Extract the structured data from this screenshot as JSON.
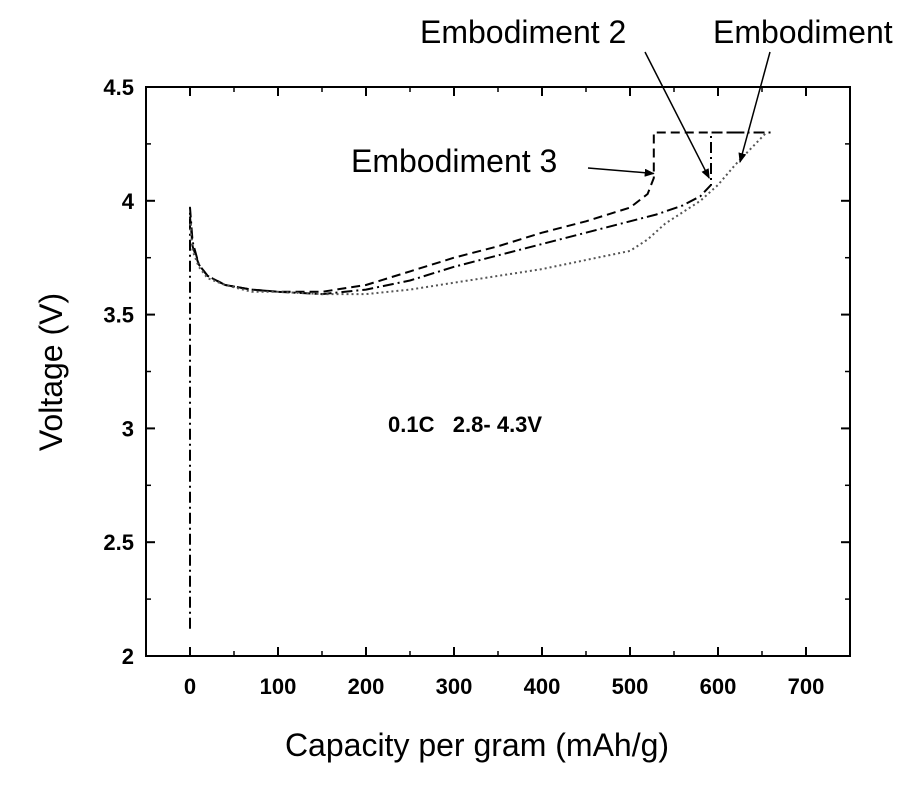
{
  "chart_data": {
    "type": "line",
    "xlabel": "Capacity per gram (mAh/g)",
    "ylabel": "Voltage (V)",
    "xlim": [
      -50,
      750
    ],
    "ylim": [
      2,
      4.5
    ],
    "xticks": [
      0,
      100,
      200,
      300,
      400,
      500,
      600,
      700
    ],
    "yticks": [
      2,
      2.5,
      3,
      3.5,
      4,
      4.5
    ],
    "ytick_labels": [
      "2",
      "2.5",
      "3",
      "3.5",
      "4",
      "4.5"
    ],
    "grid": false,
    "legend": "none",
    "condition_label": "0.1C   2.8- 4.3V",
    "series": [
      {
        "name": "Embodiment 3",
        "style": "dashed",
        "color": "#000000",
        "x": [
          0,
          3,
          10,
          20,
          40,
          70,
          100,
          150,
          200,
          250,
          300,
          350,
          400,
          450,
          500,
          520,
          527,
          527,
          530,
          560,
          600,
          630
        ],
        "y": [
          3.93,
          3.8,
          3.72,
          3.67,
          3.63,
          3.61,
          3.6,
          3.6,
          3.63,
          3.69,
          3.75,
          3.8,
          3.86,
          3.91,
          3.97,
          4.03,
          4.1,
          4.3,
          4.3,
          4.3,
          4.3,
          4.3
        ]
      },
      {
        "name": "Embodiment 2",
        "style": "dash-dot",
        "color": "#000000",
        "x": [
          0,
          0,
          0,
          3,
          10,
          20,
          40,
          70,
          100,
          150,
          200,
          250,
          300,
          350,
          400,
          450,
          500,
          530,
          560,
          580,
          592,
          592,
          620,
          660
        ],
        "y": [
          2.12,
          3.5,
          3.97,
          3.82,
          3.72,
          3.67,
          3.63,
          3.61,
          3.6,
          3.59,
          3.61,
          3.65,
          3.71,
          3.76,
          3.81,
          3.86,
          3.91,
          3.94,
          3.98,
          4.02,
          4.07,
          4.3,
          4.3,
          4.3
        ]
      },
      {
        "name": "Embodiment",
        "style": "dotted",
        "color": "#555555",
        "x": [
          0,
          3,
          10,
          20,
          40,
          70,
          100,
          150,
          200,
          250,
          300,
          350,
          400,
          450,
          500,
          520,
          540,
          560,
          580,
          600,
          620,
          640,
          655
        ],
        "y": [
          3.9,
          3.78,
          3.71,
          3.66,
          3.63,
          3.6,
          3.6,
          3.59,
          3.59,
          3.61,
          3.64,
          3.67,
          3.7,
          3.74,
          3.78,
          3.83,
          3.9,
          3.95,
          4.0,
          4.07,
          4.16,
          4.24,
          4.3
        ]
      }
    ],
    "annotations": [
      {
        "text": "Embodiment 2",
        "target": [
          590,
          4.1
        ]
      },
      {
        "text": "Embodiment",
        "target": [
          625,
          4.17
        ]
      },
      {
        "text": "Embodiment 3",
        "target": [
          527,
          4.12
        ]
      }
    ]
  }
}
